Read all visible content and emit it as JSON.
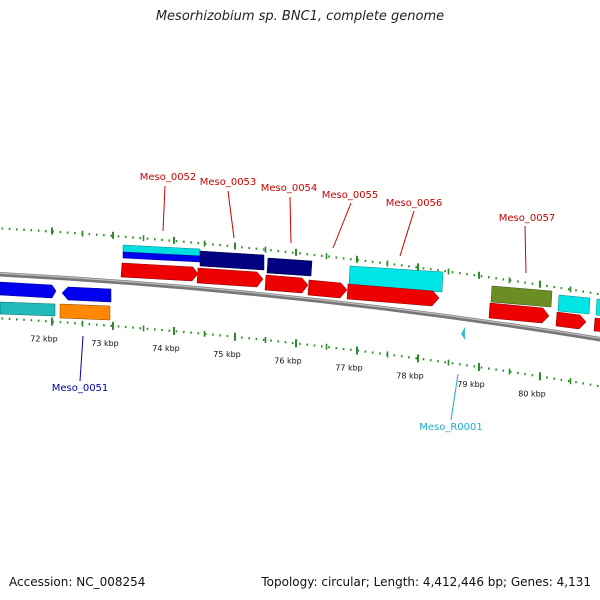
{
  "title": "Mesorhizobium sp. BNC1, complete genome",
  "footer": {
    "accession": "Accession: NC_008254",
    "summary": "Topology: circular; Length: 4,412,446 bp; Genes: 4,131"
  },
  "colors": {
    "backbone": "#8a8a8a",
    "tick": "#2e8b2e",
    "red_label": "#cc0000",
    "blue_label": "#0000aa",
    "cyan_label": "#22aacc",
    "forward_blue": "#0000ee",
    "dark_navy": "#000080",
    "cyan": "#00dddd",
    "teal": "#22bbbb",
    "red": "#ee0000",
    "orange": "#ff8800",
    "olive": "#6b8e23",
    "cyan_marker": "#33bbdd"
  },
  "scale": {
    "unit": "kbp",
    "ticks": [
      {
        "kbp": 72,
        "label": "72 kbp"
      },
      {
        "kbp": 73,
        "label": "73 kbp"
      },
      {
        "kbp": 74,
        "label": "74 kbp"
      },
      {
        "kbp": 75,
        "label": "75 kbp"
      },
      {
        "kbp": 76,
        "label": "76 kbp"
      },
      {
        "kbp": 77,
        "label": "77 kbp"
      },
      {
        "kbp": 78,
        "label": "78 kbp"
      },
      {
        "kbp": 79,
        "label": "79 kbp"
      },
      {
        "kbp": 80,
        "label": "80 kbp"
      }
    ]
  },
  "labels": {
    "Meso_0051": "Meso_0051",
    "Meso_0052": "Meso_0052",
    "Meso_0053": "Meso_0053",
    "Meso_0054": "Meso_0054",
    "Meso_0055": "Meso_0055",
    "Meso_0056": "Meso_0056",
    "Meso_0057": "Meso_0057",
    "Meso_R0001": "Meso_R0001"
  }
}
